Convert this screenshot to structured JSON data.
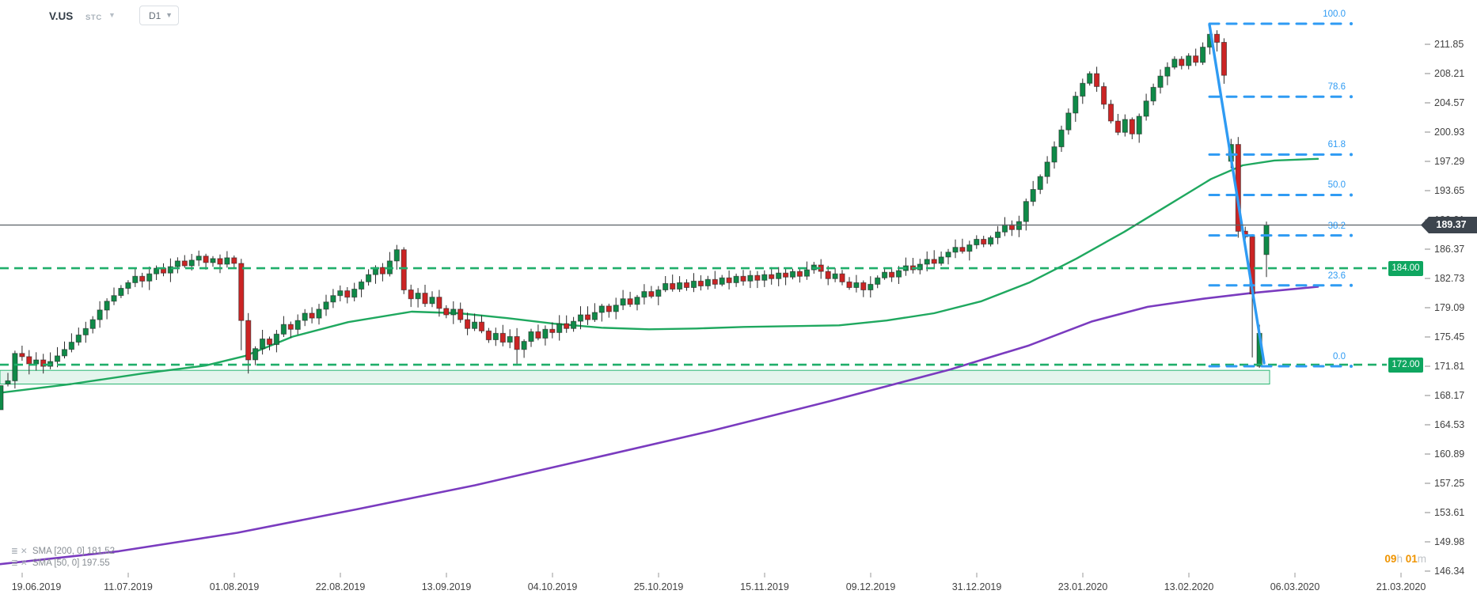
{
  "app": {
    "symbol": "V.US",
    "market_label": "STC",
    "timeframe": "D1"
  },
  "colors": {
    "candle_up": "#0f8a48",
    "candle_down": "#cb2424",
    "candle_border": "#1f1f1f",
    "sma50": "#1fa85f",
    "sma200": "#7a3bbf",
    "fib_blue": "#2f9bf3",
    "hline_green": "#1fae6a",
    "badge_green": "#0fa660",
    "price_badge_bg": "#3d454e",
    "zone_fill": "#ddf3e9",
    "zone_border": "#2bb673",
    "current_line": "#596066",
    "timer_orange": "#ef9400"
  },
  "price_axis": {
    "labels": [
      "211.85",
      "208.21",
      "204.57",
      "200.93",
      "197.29",
      "193.65",
      "190.01",
      "186.37",
      "182.73",
      "179.09",
      "175.45",
      "171.81",
      "168.17",
      "164.53",
      "160.89",
      "157.25",
      "153.61",
      "149.98",
      "146.34"
    ],
    "step": 3.64
  },
  "current_price": {
    "value": "189.37"
  },
  "dates": [
    "19.06.2019",
    "11.07.2019",
    "01.08.2019",
    "22.08.2019",
    "13.09.2019",
    "04.10.2019",
    "25.10.2019",
    "15.11.2019",
    "09.12.2019",
    "31.12.2019",
    "23.01.2020",
    "13.02.2020",
    "06.03.2020",
    "21.03.2020"
  ],
  "indicators": [
    {
      "name": "SMA",
      "params": "[200, 0]",
      "value": "181.52"
    },
    {
      "name": "SMA",
      "params": "[50, 0]",
      "value": "197.55"
    }
  ],
  "timer": {
    "hours": "09",
    "hours_unit": "h",
    "minutes": "01",
    "minutes_unit": "m"
  },
  "chart_data": {
    "type": "candlestick",
    "symbol": "V.US",
    "timeframe": "D1",
    "ylim": [
      146.34,
      211.85
    ],
    "grid": false,
    "closes": [
      170.0,
      173.4,
      173.0,
      172.1,
      172.6,
      171.8,
      172.4,
      173.1,
      173.9,
      174.8,
      175.7,
      176.5,
      177.6,
      178.8,
      179.9,
      180.6,
      181.5,
      182.2,
      183.0,
      182.4,
      183.3,
      184.0,
      183.4,
      184.2,
      184.9,
      184.3,
      185.0,
      185.5,
      184.7,
      185.2,
      184.5,
      185.3,
      184.6,
      177.5,
      172.6,
      174.0,
      175.2,
      174.5,
      175.8,
      177.0,
      176.4,
      177.5,
      178.4,
      177.8,
      178.9,
      179.8,
      180.6,
      181.2,
      180.4,
      181.4,
      182.3,
      183.2,
      184.1,
      183.3,
      184.9,
      186.3,
      181.3,
      180.2,
      180.9,
      179.6,
      180.4,
      179.0,
      178.2,
      178.9,
      177.6,
      176.5,
      177.3,
      176.2,
      175.1,
      175.9,
      174.8,
      175.5,
      173.9,
      174.9,
      176.1,
      175.3,
      176.4,
      176.0,
      177.1,
      176.5,
      177.4,
      178.2,
      177.6,
      178.5,
      179.3,
      178.6,
      179.4,
      180.2,
      179.5,
      180.4,
      181.1,
      180.5,
      181.3,
      182.1,
      181.4,
      182.2,
      181.6,
      182.4,
      181.8,
      182.6,
      182.0,
      182.8,
      182.2,
      183.0,
      182.4,
      183.1,
      182.5,
      183.2,
      182.7,
      183.4,
      182.9,
      183.6,
      183.0,
      183.8,
      184.4,
      183.6,
      182.7,
      183.3,
      182.3,
      181.6,
      182.2,
      181.3,
      182.0,
      182.8,
      183.5,
      182.9,
      183.7,
      184.3,
      183.8,
      184.5,
      185.1,
      184.6,
      185.4,
      186.0,
      186.6,
      186.1,
      186.9,
      187.6,
      187.0,
      187.8,
      188.5,
      189.4,
      188.8,
      189.8,
      192.3,
      193.8,
      195.4,
      197.2,
      199.1,
      201.2,
      203.3,
      205.4,
      207.0,
      208.2,
      206.6,
      204.4,
      202.3,
      200.9,
      202.5,
      200.7,
      202.9,
      204.8,
      206.5,
      207.9,
      209.0,
      210.0,
      209.2,
      210.4,
      209.6,
      211.5,
      213.1,
      212.1,
      208.0,
      199.4,
      188.6,
      187.9,
      180.8,
      175.9,
      189.37
    ],
    "open_overrides": {
      "173": 197.3,
      "177": 171.8,
      "178": 185.7
    },
    "wick_overrides": {
      "0": {
        "low": 169.3
      },
      "3": {
        "low": 170.8
      },
      "5": {
        "low": 170.9
      },
      "33": {
        "low": 173.8
      },
      "34": {
        "low": 170.9
      },
      "55": {
        "high": 186.9
      },
      "72": {
        "low": 171.9
      },
      "170": {
        "high": 214.41
      },
      "171": {
        "high": 213.6
      },
      "174": {
        "low": 187.8
      },
      "176": {
        "low": 172.9
      },
      "177": {
        "low": 171.6
      },
      "178": {
        "high": 189.8,
        "low": 182.9
      }
    },
    "edge_candle": {
      "top_price": 169.4,
      "bottom_price": 166.4
    },
    "fibonacci": {
      "anchor_high": 214.41,
      "anchor_low": 171.81,
      "levels": [
        {
          "label": "100.0",
          "value": 214.41
        },
        {
          "label": "78.6",
          "value": 205.33
        },
        {
          "label": "61.8",
          "value": 198.14
        },
        {
          "label": "50.0",
          "value": 193.11
        },
        {
          "label": "38.2",
          "value": 188.08
        },
        {
          "label": "23.6",
          "value": 181.86
        },
        {
          "label": "0.0",
          "value": 171.81
        }
      ]
    },
    "hlines": [
      {
        "label": "184.00",
        "value": 184.0
      },
      {
        "label": "172.00",
        "value": 172.0
      }
    ],
    "support_zone": {
      "top_price": 171.3,
      "bottom_price": 169.6
    },
    "trendline": {
      "from_price": 214.3,
      "to_price": 172.2
    },
    "sma50_points": [
      [
        0,
        168.5
      ],
      [
        90,
        169.6
      ],
      [
        180,
        170.9
      ],
      [
        260,
        171.9
      ],
      [
        310,
        173.1
      ],
      [
        370,
        175.5
      ],
      [
        440,
        177.3
      ],
      [
        520,
        178.6
      ],
      [
        580,
        178.4
      ],
      [
        640,
        177.8
      ],
      [
        700,
        177.1
      ],
      [
        760,
        176.6
      ],
      [
        820,
        176.4
      ],
      [
        880,
        176.5
      ],
      [
        940,
        176.7
      ],
      [
        1000,
        176.8
      ],
      [
        1060,
        176.9
      ],
      [
        1120,
        177.5
      ],
      [
        1180,
        178.4
      ],
      [
        1240,
        179.9
      ],
      [
        1300,
        182.2
      ],
      [
        1360,
        185.2
      ],
      [
        1420,
        188.5
      ],
      [
        1480,
        192.1
      ],
      [
        1530,
        195.1
      ],
      [
        1570,
        196.8
      ],
      [
        1610,
        197.4
      ],
      [
        1665,
        197.6
      ]
    ],
    "sma200_points": [
      [
        0,
        147.2
      ],
      [
        150,
        148.8
      ],
      [
        300,
        151.1
      ],
      [
        450,
        154.0
      ],
      [
        600,
        157.0
      ],
      [
        750,
        160.4
      ],
      [
        900,
        163.8
      ],
      [
        1050,
        167.5
      ],
      [
        1200,
        171.4
      ],
      [
        1300,
        174.4
      ],
      [
        1380,
        177.4
      ],
      [
        1450,
        179.2
      ],
      [
        1520,
        180.2
      ],
      [
        1580,
        180.9
      ],
      [
        1665,
        181.7
      ]
    ]
  }
}
